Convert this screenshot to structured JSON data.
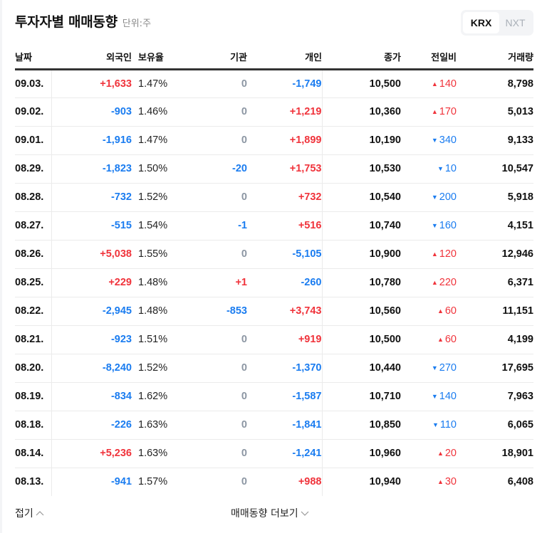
{
  "header": {
    "title": "투자자별 매매동향",
    "unit": "단위:주"
  },
  "market_toggle": {
    "options": [
      {
        "label": "KRX",
        "active": true
      },
      {
        "label": "NXT",
        "active": false
      }
    ]
  },
  "table": {
    "columns": [
      "날짜",
      "외국인",
      "보유율",
      "기관",
      "개인",
      "종가",
      "전일비",
      "거래량"
    ],
    "rows": [
      {
        "date": "09.03.",
        "foreign": "+1,633",
        "foreign_dir": "up",
        "ratio": "1.47%",
        "inst": "0",
        "inst_dir": "zero",
        "indiv": "-1,749",
        "indiv_dir": "down",
        "close": "10,500",
        "change": "140",
        "change_dir": "up",
        "change_arrow": "▲",
        "volume": "8,798"
      },
      {
        "date": "09.02.",
        "foreign": "-903",
        "foreign_dir": "down",
        "ratio": "1.46%",
        "inst": "0",
        "inst_dir": "zero",
        "indiv": "+1,219",
        "indiv_dir": "up",
        "close": "10,360",
        "change": "170",
        "change_dir": "up",
        "change_arrow": "▲",
        "volume": "5,013"
      },
      {
        "date": "09.01.",
        "foreign": "-1,916",
        "foreign_dir": "down",
        "ratio": "1.47%",
        "inst": "0",
        "inst_dir": "zero",
        "indiv": "+1,899",
        "indiv_dir": "up",
        "close": "10,190",
        "change": "340",
        "change_dir": "down",
        "change_arrow": "▼",
        "volume": "9,133"
      },
      {
        "date": "08.29.",
        "foreign": "-1,823",
        "foreign_dir": "down",
        "ratio": "1.50%",
        "inst": "-20",
        "inst_dir": "down",
        "indiv": "+1,753",
        "indiv_dir": "up",
        "close": "10,530",
        "change": "10",
        "change_dir": "down",
        "change_arrow": "▼",
        "volume": "10,547"
      },
      {
        "date": "08.28.",
        "foreign": "-732",
        "foreign_dir": "down",
        "ratio": "1.52%",
        "inst": "0",
        "inst_dir": "zero",
        "indiv": "+732",
        "indiv_dir": "up",
        "close": "10,540",
        "change": "200",
        "change_dir": "down",
        "change_arrow": "▼",
        "volume": "5,918"
      },
      {
        "date": "08.27.",
        "foreign": "-515",
        "foreign_dir": "down",
        "ratio": "1.54%",
        "inst": "-1",
        "inst_dir": "down",
        "indiv": "+516",
        "indiv_dir": "up",
        "close": "10,740",
        "change": "160",
        "change_dir": "down",
        "change_arrow": "▼",
        "volume": "4,151"
      },
      {
        "date": "08.26.",
        "foreign": "+5,038",
        "foreign_dir": "up",
        "ratio": "1.55%",
        "inst": "0",
        "inst_dir": "zero",
        "indiv": "-5,105",
        "indiv_dir": "down",
        "close": "10,900",
        "change": "120",
        "change_dir": "up",
        "change_arrow": "▲",
        "volume": "12,946"
      },
      {
        "date": "08.25.",
        "foreign": "+229",
        "foreign_dir": "up",
        "ratio": "1.48%",
        "inst": "+1",
        "inst_dir": "up",
        "indiv": "-260",
        "indiv_dir": "down",
        "close": "10,780",
        "change": "220",
        "change_dir": "up",
        "change_arrow": "▲",
        "volume": "6,371"
      },
      {
        "date": "08.22.",
        "foreign": "-2,945",
        "foreign_dir": "down",
        "ratio": "1.48%",
        "inst": "-853",
        "inst_dir": "down",
        "indiv": "+3,743",
        "indiv_dir": "up",
        "close": "10,560",
        "change": "60",
        "change_dir": "up",
        "change_arrow": "▲",
        "volume": "11,151"
      },
      {
        "date": "08.21.",
        "foreign": "-923",
        "foreign_dir": "down",
        "ratio": "1.51%",
        "inst": "0",
        "inst_dir": "zero",
        "indiv": "+919",
        "indiv_dir": "up",
        "close": "10,500",
        "change": "60",
        "change_dir": "up",
        "change_arrow": "▲",
        "volume": "4,199"
      },
      {
        "date": "08.20.",
        "foreign": "-8,240",
        "foreign_dir": "down",
        "ratio": "1.52%",
        "inst": "0",
        "inst_dir": "zero",
        "indiv": "-1,370",
        "indiv_dir": "down",
        "close": "10,440",
        "change": "270",
        "change_dir": "down",
        "change_arrow": "▼",
        "volume": "17,695"
      },
      {
        "date": "08.19.",
        "foreign": "-834",
        "foreign_dir": "down",
        "ratio": "1.62%",
        "inst": "0",
        "inst_dir": "zero",
        "indiv": "-1,587",
        "indiv_dir": "down",
        "close": "10,710",
        "change": "140",
        "change_dir": "down",
        "change_arrow": "▼",
        "volume": "7,963"
      },
      {
        "date": "08.18.",
        "foreign": "-226",
        "foreign_dir": "down",
        "ratio": "1.63%",
        "inst": "0",
        "inst_dir": "zero",
        "indiv": "-1,841",
        "indiv_dir": "down",
        "close": "10,850",
        "change": "110",
        "change_dir": "down",
        "change_arrow": "▼",
        "volume": "6,065"
      },
      {
        "date": "08.14.",
        "foreign": "+5,236",
        "foreign_dir": "up",
        "ratio": "1.63%",
        "inst": "0",
        "inst_dir": "zero",
        "indiv": "-1,241",
        "indiv_dir": "down",
        "close": "10,960",
        "change": "20",
        "change_dir": "up",
        "change_arrow": "▲",
        "volume": "18,901"
      },
      {
        "date": "08.13.",
        "foreign": "-941",
        "foreign_dir": "down",
        "ratio": "1.57%",
        "inst": "0",
        "inst_dir": "zero",
        "indiv": "+988",
        "indiv_dir": "up",
        "close": "10,940",
        "change": "30",
        "change_dir": "up",
        "change_arrow": "▲",
        "volume": "6,408"
      }
    ]
  },
  "footer": {
    "collapse_label": "접기",
    "more_label": "매매동향 더보기"
  },
  "colors": {
    "up": "#f0333b",
    "down": "#1a7cf0",
    "zero": "#8c96a3",
    "header_border": "#333333",
    "row_border": "#ebebeb"
  },
  "icons": {
    "collapse": "chevron-up-icon",
    "more": "chevron-down-icon",
    "rise": "triangle-up-icon",
    "fall": "triangle-down-icon"
  }
}
